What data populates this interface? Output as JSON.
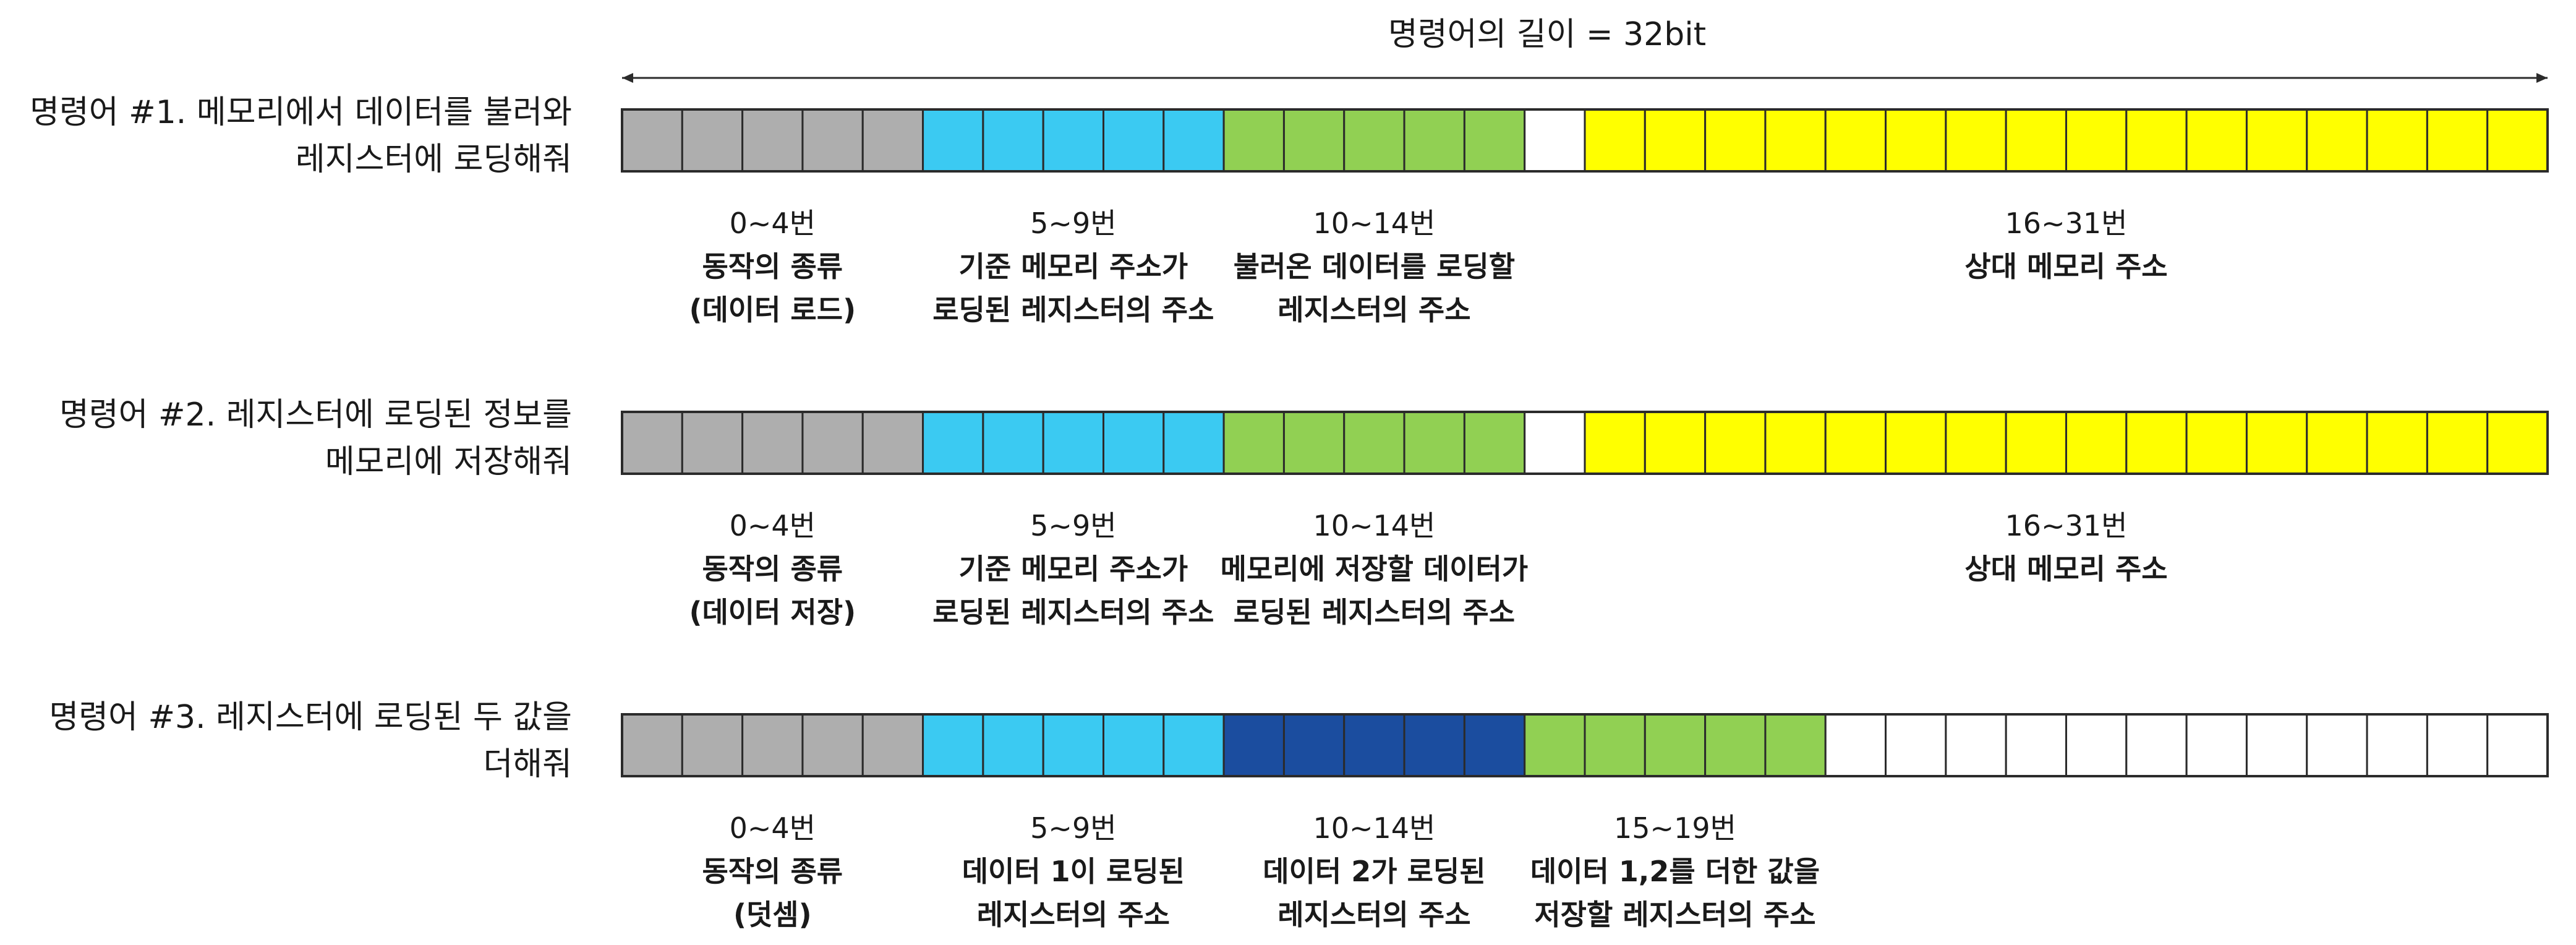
{
  "title": "명령어의 길이 = 32bit",
  "colors": {
    "gray": "#aeaeae",
    "cyan": "#3bcaf2",
    "green": "#91d053",
    "navy": "#1b4d9f",
    "yellow": "#ffff00",
    "white": "#ffffff",
    "stroke": "#2b2b2b"
  },
  "instructions": [
    {
      "label_lines": [
        "명령어 #1. 메모리에서 데이터를 불러와",
        "레지스터에 로딩해줘"
      ],
      "fields": [
        {
          "start": 0,
          "end": 4,
          "color": "gray",
          "range": "0~4번",
          "desc": [
            "동작의 종류",
            "(데이터 로드)"
          ]
        },
        {
          "start": 5,
          "end": 9,
          "color": "cyan",
          "range": "5~9번",
          "desc": [
            "기준 메모리 주소가",
            "로딩된 레지스터의 주소"
          ]
        },
        {
          "start": 10,
          "end": 14,
          "color": "green",
          "range": "10~14번",
          "desc": [
            "불러온 데이터를 로딩할",
            "레지스터의 주소"
          ]
        },
        {
          "start": 15,
          "end": 15,
          "color": "white",
          "range": "",
          "desc": []
        },
        {
          "start": 16,
          "end": 31,
          "color": "yellow",
          "range": "16~31번",
          "desc": [
            "상대 메모리 주소"
          ]
        }
      ]
    },
    {
      "label_lines": [
        "명령어 #2. 레지스터에 로딩된 정보를",
        "메모리에 저장해줘"
      ],
      "fields": [
        {
          "start": 0,
          "end": 4,
          "color": "gray",
          "range": "0~4번",
          "desc": [
            "동작의 종류",
            "(데이터 저장)"
          ]
        },
        {
          "start": 5,
          "end": 9,
          "color": "cyan",
          "range": "5~9번",
          "desc": [
            "기준 메모리 주소가",
            "로딩된 레지스터의 주소"
          ]
        },
        {
          "start": 10,
          "end": 14,
          "color": "green",
          "range": "10~14번",
          "desc": [
            "메모리에 저장할 데이터가",
            "로딩된 레지스터의 주소"
          ]
        },
        {
          "start": 15,
          "end": 15,
          "color": "white",
          "range": "",
          "desc": []
        },
        {
          "start": 16,
          "end": 31,
          "color": "yellow",
          "range": "16~31번",
          "desc": [
            "상대 메모리 주소"
          ]
        }
      ]
    },
    {
      "label_lines": [
        "명령어 #3. 레지스터에 로딩된 두 값을",
        "더해줘"
      ],
      "fields": [
        {
          "start": 0,
          "end": 4,
          "color": "gray",
          "range": "0~4번",
          "desc": [
            "동작의 종류",
            "(덧셈)"
          ]
        },
        {
          "start": 5,
          "end": 9,
          "color": "cyan",
          "range": "5~9번",
          "desc": [
            "데이터 1이 로딩된",
            "레지스터의 주소"
          ]
        },
        {
          "start": 10,
          "end": 14,
          "color": "navy",
          "range": "10~14번",
          "desc": [
            "데이터 2가 로딩된",
            "레지스터의 주소"
          ]
        },
        {
          "start": 15,
          "end": 19,
          "color": "green",
          "range": "15~19번",
          "desc": [
            "데이터 1,2를 더한 값을",
            "저장할 레지스터의 주소"
          ]
        },
        {
          "start": 20,
          "end": 31,
          "color": "white",
          "range": "",
          "desc": []
        }
      ]
    }
  ]
}
